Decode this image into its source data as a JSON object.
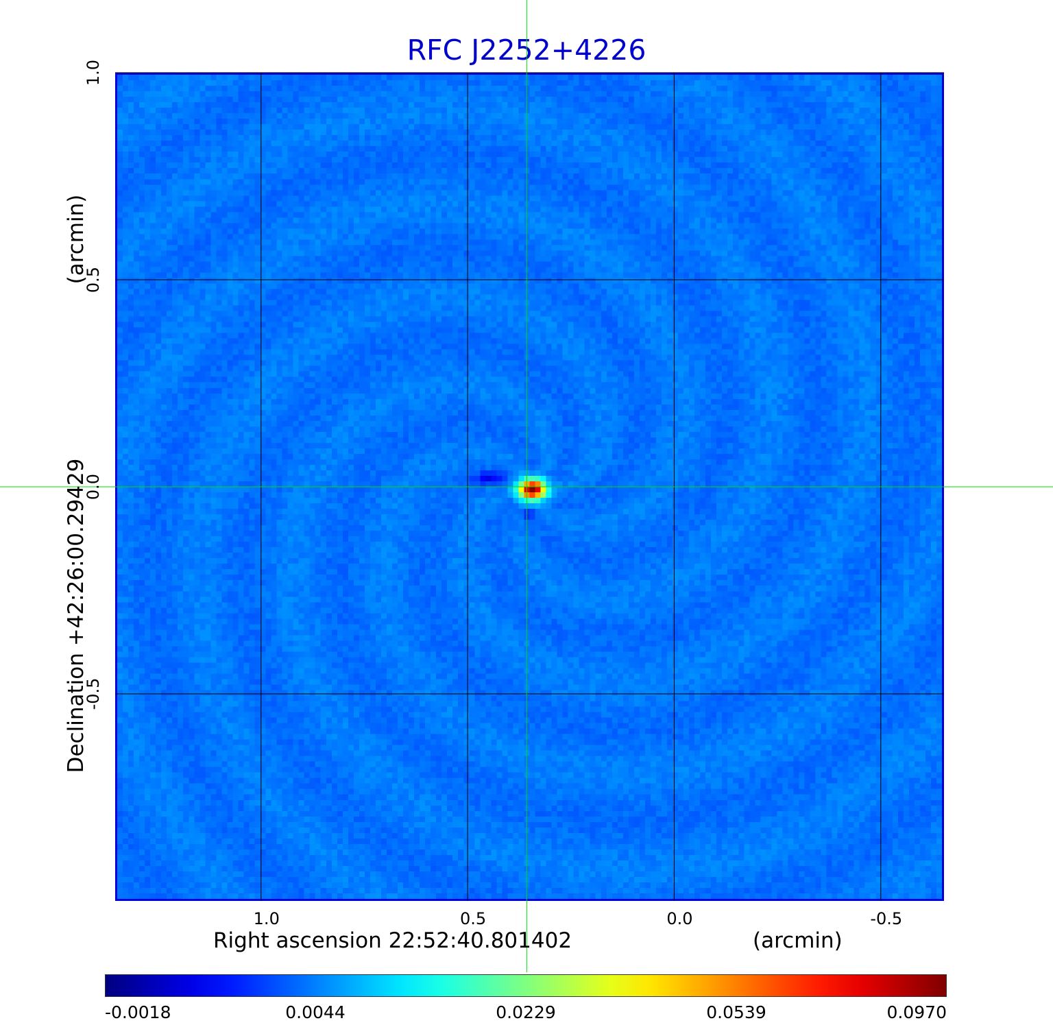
{
  "chart_data": {
    "type": "heatmap",
    "title": "RFC J2252+4226",
    "xlabel": "Right ascension  22:52:40.801402",
    "xunit": "(arcmin)",
    "ylabel": "Declination  +42:26:00.29429",
    "yunit": "(arcmin)",
    "x_ticks": [
      "1.0",
      "0.5",
      "0.0",
      "-0.5"
    ],
    "x_tick_values": [
      1.0,
      0.5,
      0.0,
      -0.5
    ],
    "y_ticks": [
      "1.0",
      "0.5",
      "0.0",
      "-0.5"
    ],
    "y_tick_values": [
      1.0,
      0.5,
      0.0,
      -0.5
    ],
    "xlim": [
      1.353,
      -0.653
    ],
    "ylim": [
      -1.0,
      1.0
    ],
    "grid": true,
    "colormap": "jet",
    "colorbar": {
      "orientation": "horizontal",
      "location": "bottom",
      "tick_labels": [
        "-0.0018",
        "0.0044",
        "0.0229",
        "0.0539",
        "0.0970"
      ],
      "tick_values": [
        -0.0018,
        0.0044,
        0.0229,
        0.0539,
        0.097
      ]
    },
    "peak": {
      "x": 0.35,
      "y": 0.0,
      "value": 0.097
    },
    "crosshair": {
      "x": 0.357,
      "y": 0.0,
      "color": "#00dd00"
    }
  },
  "colors": {
    "title": "#0000cc",
    "frame": "#0000d8",
    "background_map": "#1b5af0",
    "grid": "#000000",
    "crosshair": "#00dd00"
  }
}
